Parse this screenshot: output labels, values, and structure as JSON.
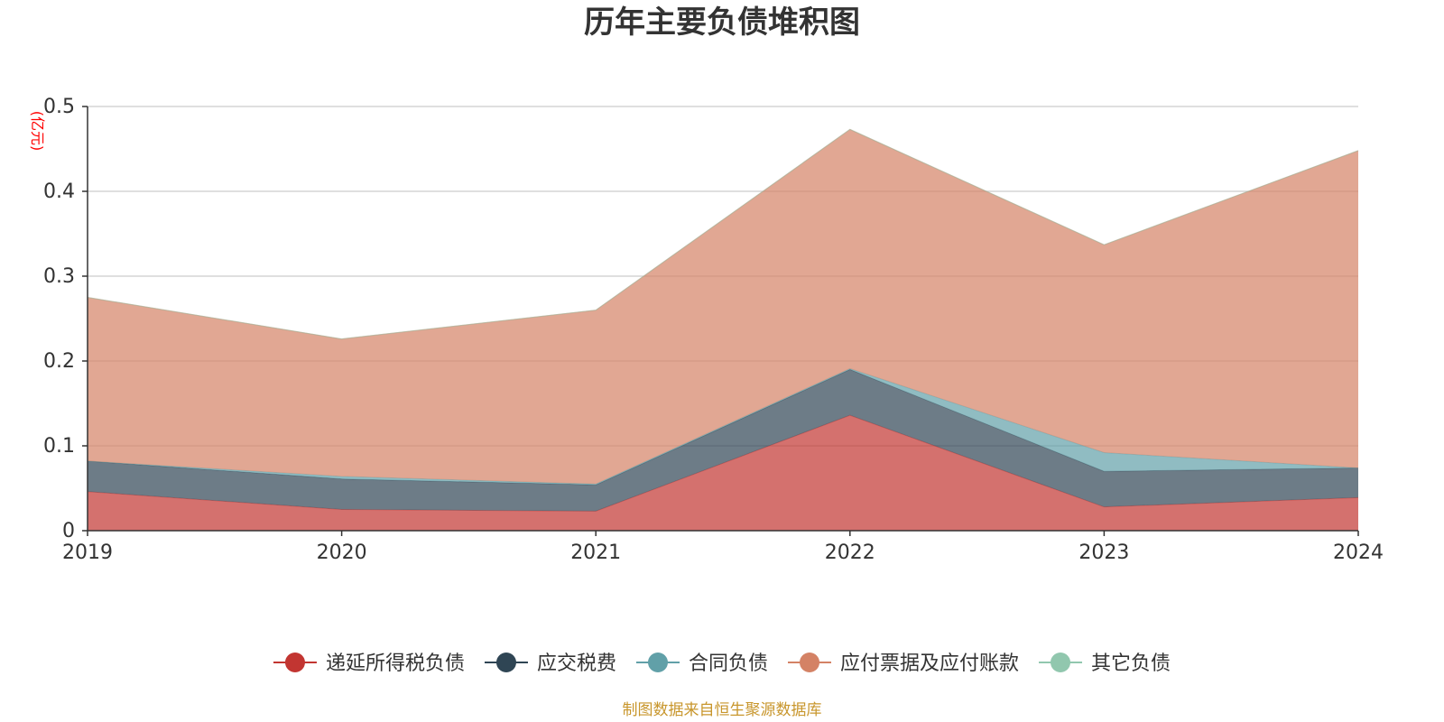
{
  "chart_data": {
    "type": "area",
    "stacked": true,
    "title": "历年主要负债堆积图",
    "ylabel": "(亿元)",
    "xlabel": "",
    "categories": [
      "2019",
      "2020",
      "2021",
      "2022",
      "2023",
      "2024"
    ],
    "ylim": [
      0,
      0.5
    ],
    "yticks": [
      0,
      0.1,
      0.2,
      0.3,
      0.4,
      0.5
    ],
    "ytick_labels": [
      "0",
      "0.1",
      "0.2",
      "0.3",
      "0.4",
      "0.5"
    ],
    "grid": true,
    "legend_position": "bottom",
    "series": [
      {
        "name": "递延所得税负债",
        "color": "#c23531",
        "values": [
          0.046,
          0.025,
          0.023,
          0.136,
          0.028,
          0.039
        ]
      },
      {
        "name": "应交税费",
        "color": "#2f4554",
        "values": [
          0.036,
          0.036,
          0.031,
          0.054,
          0.042,
          0.035
        ]
      },
      {
        "name": "合同负债",
        "color": "#61a0a8",
        "values": [
          0.0,
          0.003,
          0.001,
          0.001,
          0.022,
          0.0
        ]
      },
      {
        "name": "应付票据及应付账款",
        "color": "#d48265",
        "values": [
          0.193,
          0.162,
          0.205,
          0.282,
          0.245,
          0.374
        ]
      },
      {
        "name": "其它负债",
        "color": "#91c7ae",
        "values": [
          0.0,
          0.0,
          0.0,
          0.0,
          0.0,
          0.0
        ]
      }
    ],
    "source": "制图数据来自恒生聚源数据库",
    "colors": {
      "title": "#333333",
      "axis": "#333333",
      "grid": "#cccccc",
      "unit": "#ff0000",
      "source": "#c8962c"
    }
  }
}
